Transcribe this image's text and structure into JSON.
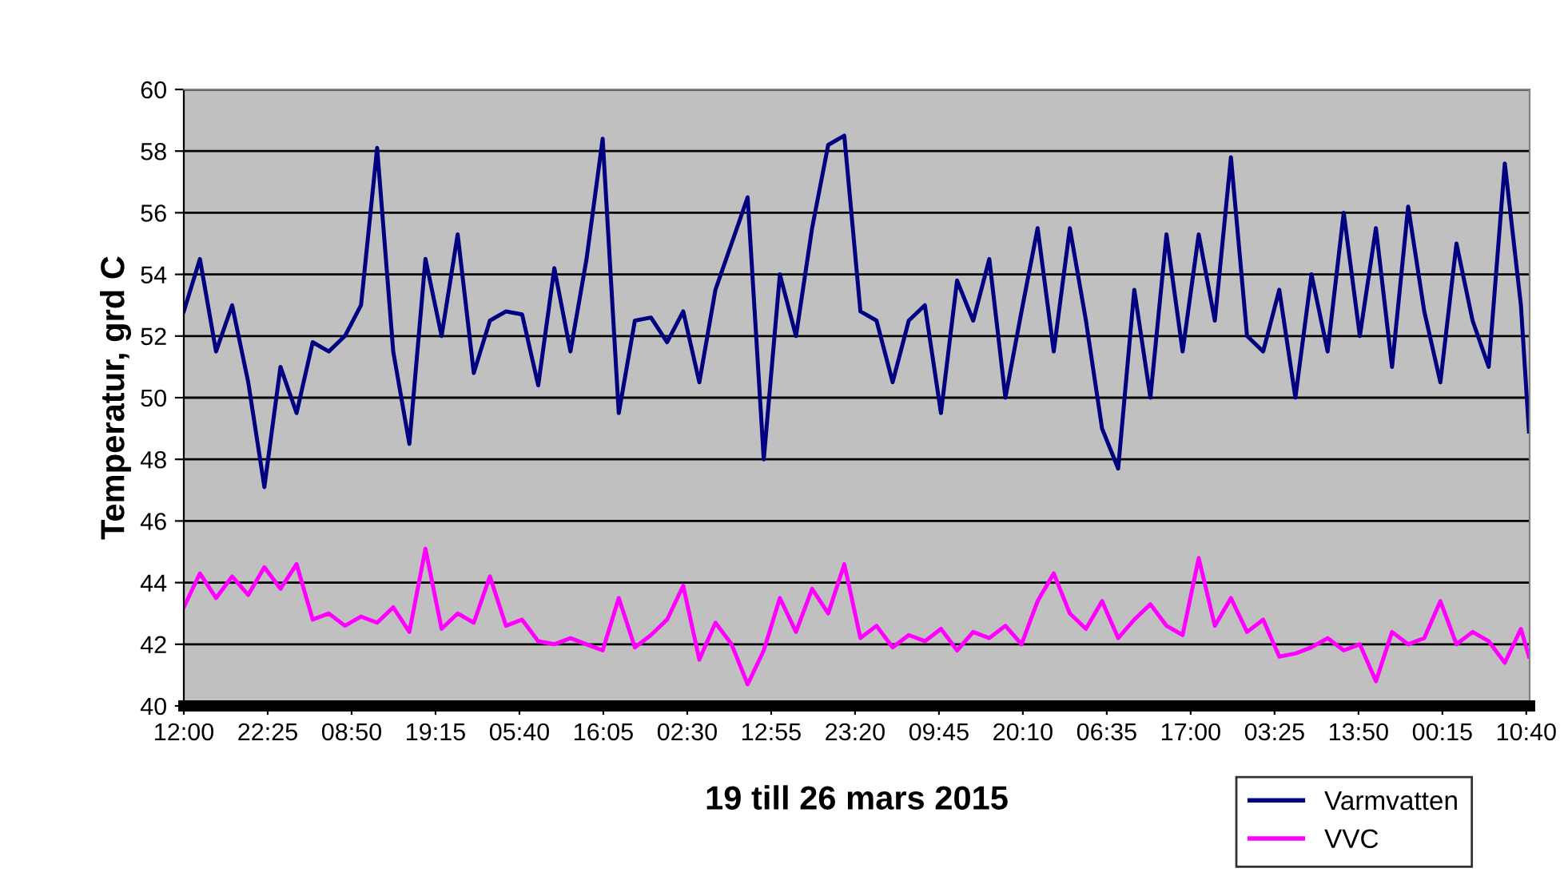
{
  "chart_data": {
    "type": "line",
    "xlabel": "19 till 26 mars 2015",
    "ylabel": "Temperatur, grd C",
    "x": [
      "2015-03-19T12:00",
      "2015-03-19T14:00",
      "2015-03-19T16:00",
      "2015-03-19T18:00",
      "2015-03-19T20:00",
      "2015-03-19T22:00",
      "2015-03-20T00:00",
      "2015-03-20T02:00",
      "2015-03-20T04:00",
      "2015-03-20T06:00",
      "2015-03-20T08:00",
      "2015-03-20T10:00",
      "2015-03-20T12:00",
      "2015-03-20T14:00",
      "2015-03-20T16:00",
      "2015-03-20T18:00",
      "2015-03-20T20:00",
      "2015-03-20T22:00",
      "2015-03-21T00:00",
      "2015-03-21T02:00",
      "2015-03-21T04:00",
      "2015-03-21T06:00",
      "2015-03-21T08:00",
      "2015-03-21T10:00",
      "2015-03-21T12:00",
      "2015-03-21T14:00",
      "2015-03-21T16:00",
      "2015-03-21T18:00",
      "2015-03-21T20:00",
      "2015-03-21T22:00",
      "2015-03-22T00:00",
      "2015-03-22T02:00",
      "2015-03-22T04:00",
      "2015-03-22T06:00",
      "2015-03-22T08:00",
      "2015-03-22T10:00",
      "2015-03-22T12:00",
      "2015-03-22T14:00",
      "2015-03-22T16:00",
      "2015-03-22T18:00",
      "2015-03-22T20:00",
      "2015-03-22T22:00",
      "2015-03-23T00:00",
      "2015-03-23T02:00",
      "2015-03-23T04:00",
      "2015-03-23T06:00",
      "2015-03-23T08:00",
      "2015-03-23T10:00",
      "2015-03-23T12:00",
      "2015-03-23T14:00",
      "2015-03-23T16:00",
      "2015-03-23T18:00",
      "2015-03-23T20:00",
      "2015-03-23T22:00",
      "2015-03-24T00:00",
      "2015-03-24T02:00",
      "2015-03-24T04:00",
      "2015-03-24T06:00",
      "2015-03-24T08:00",
      "2015-03-24T10:00",
      "2015-03-24T12:00",
      "2015-03-24T14:00",
      "2015-03-24T16:00",
      "2015-03-24T18:00",
      "2015-03-24T20:00",
      "2015-03-24T22:00",
      "2015-03-25T00:00",
      "2015-03-25T02:00",
      "2015-03-25T04:00",
      "2015-03-25T06:00",
      "2015-03-25T08:00",
      "2015-03-25T10:00",
      "2015-03-25T12:00",
      "2015-03-25T14:00",
      "2015-03-25T16:00",
      "2015-03-25T18:00",
      "2015-03-25T20:00",
      "2015-03-25T22:00",
      "2015-03-26T00:00",
      "2015-03-26T02:00",
      "2015-03-26T04:00",
      "2015-03-26T06:00",
      "2015-03-26T08:00",
      "2015-03-26T10:00",
      "2015-03-26T11:00"
    ],
    "series": [
      {
        "name": "Varmvatten",
        "color": "#000080",
        "values": [
          52.8,
          54.5,
          51.5,
          53,
          50.5,
          47.1,
          51,
          49.5,
          51.8,
          51.5,
          52,
          53,
          58.1,
          51.5,
          48.5,
          54.5,
          52,
          55.3,
          50.8,
          52.5,
          52.8,
          52.7,
          50.4,
          54.2,
          51.5,
          54.5,
          58.4,
          49.5,
          52.5,
          52.6,
          51.8,
          52.8,
          50.5,
          53.5,
          55,
          56.5,
          48,
          54,
          52,
          55.5,
          58.2,
          58.5,
          52.8,
          52.5,
          50.5,
          52.5,
          53,
          49.5,
          53.8,
          52.5,
          54.5,
          50,
          52.8,
          55.5,
          51.5,
          55.5,
          52.5,
          49,
          47.7,
          53.5,
          50,
          55.3,
          51.5,
          55.3,
          52.5,
          57.8,
          52,
          51.5,
          53.5,
          50,
          54,
          51.5,
          56,
          52,
          55.5,
          51,
          56.2,
          52.8,
          50.5,
          55,
          52.5,
          51,
          57.6,
          53,
          48.9
        ]
      },
      {
        "name": "VVC",
        "color": "#ff00ff",
        "values": [
          43.2,
          44.3,
          43.5,
          44.2,
          43.6,
          44.5,
          43.8,
          44.6,
          42.8,
          43,
          42.6,
          42.9,
          42.7,
          43.2,
          42.4,
          45.1,
          42.5,
          43,
          42.7,
          44.2,
          42.6,
          42.8,
          42.1,
          42,
          42.2,
          42,
          41.8,
          43.5,
          41.9,
          42.3,
          42.8,
          43.9,
          41.5,
          42.7,
          42,
          40.7,
          41.8,
          43.5,
          42.4,
          43.8,
          43,
          44.6,
          42.2,
          42.6,
          41.9,
          42.3,
          42.1,
          42.5,
          41.8,
          42.4,
          42.2,
          42.6,
          42,
          43.4,
          44.3,
          43,
          42.5,
          43.4,
          42.2,
          42.8,
          43.3,
          42.6,
          42.3,
          44.8,
          42.6,
          43.5,
          42.4,
          42.8,
          41.6,
          41.7,
          41.9,
          42.2,
          41.8,
          42,
          40.8,
          42.4,
          42,
          42.2,
          43.4,
          42,
          42.4,
          42.1,
          41.4,
          42.5,
          41.6
        ]
      }
    ],
    "xlim": [
      "2015-03-19T12:00",
      "2015-03-26T11:05"
    ],
    "xticks": [
      {
        "value": "2015-03-19T12:00",
        "label": "12:00"
      },
      {
        "value": "2015-03-19T22:25",
        "label": "22:25"
      },
      {
        "value": "2015-03-20T08:50",
        "label": "08:50"
      },
      {
        "value": "2015-03-20T19:15",
        "label": "19:15"
      },
      {
        "value": "2015-03-21T05:40",
        "label": "05:40"
      },
      {
        "value": "2015-03-21T16:05",
        "label": "16:05"
      },
      {
        "value": "2015-03-22T02:30",
        "label": "02:30"
      },
      {
        "value": "2015-03-22T12:55",
        "label": "12:55"
      },
      {
        "value": "2015-03-22T23:20",
        "label": "23:20"
      },
      {
        "value": "2015-03-23T09:45",
        "label": "09:45"
      },
      {
        "value": "2015-03-23T20:10",
        "label": "20:10"
      },
      {
        "value": "2015-03-24T06:35",
        "label": "06:35"
      },
      {
        "value": "2015-03-24T17:00",
        "label": "17:00"
      },
      {
        "value": "2015-03-25T03:25",
        "label": "03:25"
      },
      {
        "value": "2015-03-25T13:50",
        "label": "13:50"
      },
      {
        "value": "2015-03-26T00:15",
        "label": "00:15"
      },
      {
        "value": "2015-03-26T10:40",
        "label": "10:40"
      }
    ],
    "ylim": [
      40,
      60
    ],
    "yticks": [
      40,
      42,
      44,
      46,
      48,
      50,
      52,
      54,
      56,
      58,
      60
    ],
    "grid": "y",
    "legend": "bottom right",
    "marker": "none",
    "line_style": "solid"
  }
}
